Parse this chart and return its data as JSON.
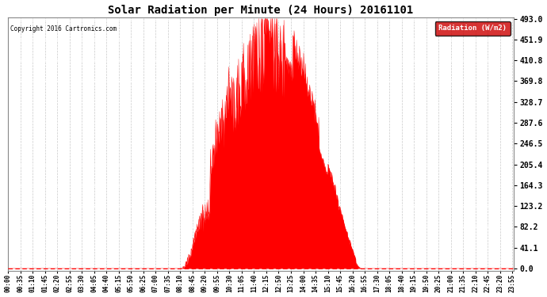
{
  "title": "Solar Radiation per Minute (24 Hours) 20161101",
  "copyright_text": "Copyright 2016 Cartronics.com",
  "legend_label": "Radiation (W/m2)",
  "legend_bg": "#cc0000",
  "legend_fg": "#ffffff",
  "fill_color": "#ff0000",
  "line_color": "#ff0000",
  "background_color": "#ffffff",
  "grid_color": "#aaaaaa",
  "yticks": [
    0.0,
    41.1,
    82.2,
    123.2,
    164.3,
    205.4,
    246.5,
    287.6,
    328.7,
    369.8,
    410.8,
    451.9,
    493.0
  ],
  "ymax": 493.0,
  "ymin": 0.0,
  "total_minutes": 1440,
  "xtick_interval_minutes": 35,
  "sunrise_minute": 490,
  "sunset_minute": 1005,
  "peak_minute": 735,
  "peak_value": 493.0,
  "figwidth": 6.9,
  "figheight": 3.75,
  "dpi": 100
}
